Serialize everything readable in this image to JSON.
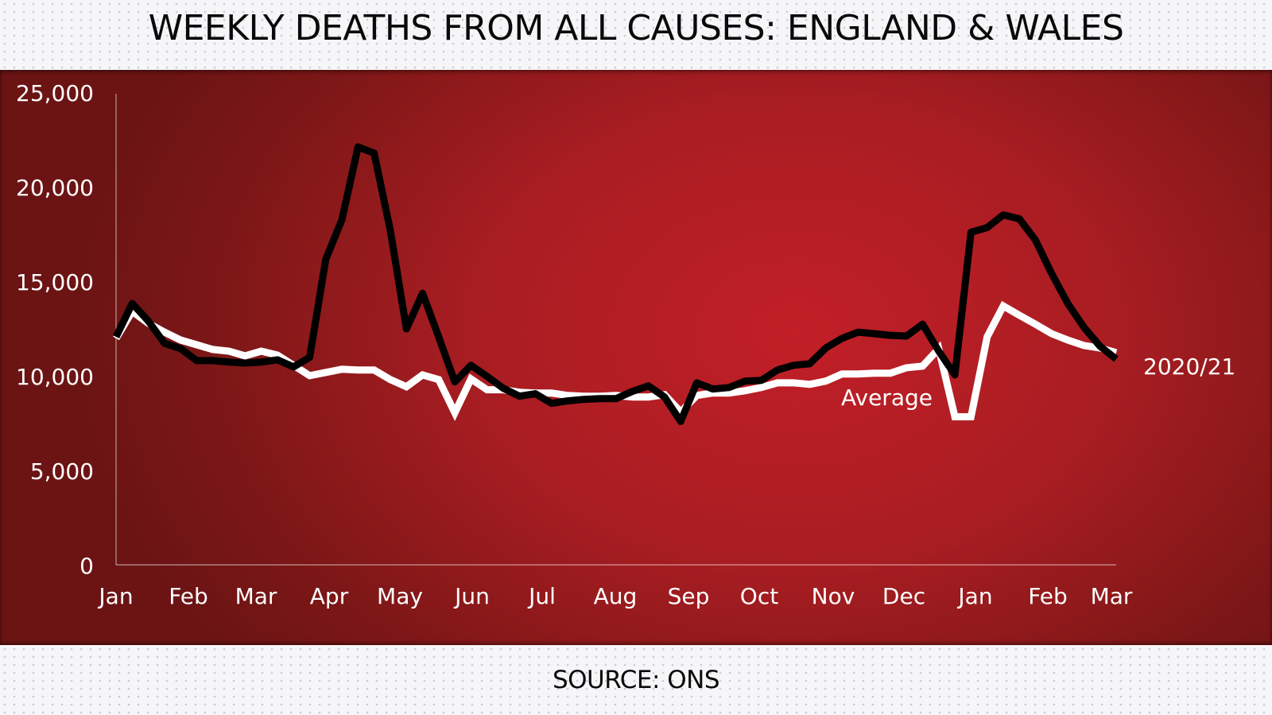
{
  "header": {
    "title": "WEEKLY DEATHS FROM ALL CAUSES: ENGLAND & WALES"
  },
  "footer": {
    "source": "SOURCE: ONS"
  },
  "colors": {
    "panel_red": "#b71c23",
    "panel_dark": "#6c1414",
    "series_2020_21": "#000000",
    "series_average": "#ffffff",
    "text_on_red": "#ffffff",
    "band_bg": "#f6f6f8"
  },
  "chart_data": {
    "type": "line",
    "title": "WEEKLY DEATHS FROM ALL CAUSES: ENGLAND & WALES",
    "xlabel": "",
    "ylabel": "",
    "ylim": [
      0,
      25000
    ],
    "yticks": [
      0,
      5000,
      10000,
      15000,
      20000,
      25000
    ],
    "ytick_labels": [
      "0",
      "5,000",
      "10,000",
      "15,000",
      "20,000",
      "25,000"
    ],
    "xtick_labels": [
      "Jan",
      "Feb",
      "Mar",
      "Apr",
      "May",
      "Jun",
      "Jul",
      "Aug",
      "Sep",
      "Oct",
      "Nov",
      "Dec",
      "Jan",
      "Feb",
      "Mar"
    ],
    "grid": false,
    "legend": "inline labels",
    "annotations": [
      {
        "text": "Average",
        "series": "Average"
      },
      {
        "text": "2020/21",
        "series": "2020/21"
      }
    ],
    "source": "SOURCE: ONS",
    "x_unit": "week (Jan 2020 – Mar 2021)",
    "series": [
      {
        "name": "2020/21",
        "color": "#000000",
        "values": [
          12100,
          13870,
          12940,
          11760,
          11470,
          10840,
          10840,
          10760,
          10710,
          10760,
          10880,
          10500,
          11010,
          16220,
          18320,
          22180,
          21850,
          17770,
          12520,
          14410,
          12100,
          9710,
          10590,
          10000,
          9370,
          8950,
          9080,
          8570,
          8700,
          8780,
          8820,
          8820,
          9200,
          9500,
          8910,
          7610,
          9660,
          9330,
          9410,
          9750,
          9790,
          10340,
          10590,
          10670,
          11510,
          12020,
          12350,
          12270,
          12180,
          12140,
          12770,
          11340,
          10080,
          17650,
          17900,
          18570,
          18360,
          17230,
          15460,
          13870,
          12610,
          11600,
          10920
        ]
      },
      {
        "name": "Average",
        "color": "#ffffff",
        "values": [
          12020,
          13450,
          12820,
          12350,
          11930,
          11680,
          11430,
          11340,
          11090,
          11340,
          11130,
          10590,
          10040,
          10210,
          10380,
          10340,
          10340,
          9830,
          9450,
          10080,
          9830,
          8070,
          9870,
          9290,
          9290,
          9160,
          9120,
          9120,
          8990,
          8950,
          8950,
          8990,
          8910,
          8910,
          9030,
          8110,
          8990,
          9120,
          9120,
          9240,
          9410,
          9660,
          9660,
          9580,
          9750,
          10130,
          10130,
          10170,
          10170,
          10460,
          10550,
          11470,
          7860,
          7860,
          12100,
          13740,
          13240,
          12770,
          12270,
          11930,
          11640,
          11510,
          11260
        ]
      }
    ]
  },
  "labels": {
    "average": "Average",
    "current": "2020/21"
  },
  "axes": {
    "y": [
      "25,000",
      "20,000",
      "15,000",
      "10,000",
      "5,000",
      "0"
    ],
    "x": [
      "Jan",
      "Feb",
      "Mar",
      "Apr",
      "May",
      "Jun",
      "Jul",
      "Aug",
      "Sep",
      "Oct",
      "Nov",
      "Dec",
      "Jan",
      "Feb",
      "Mar"
    ]
  }
}
